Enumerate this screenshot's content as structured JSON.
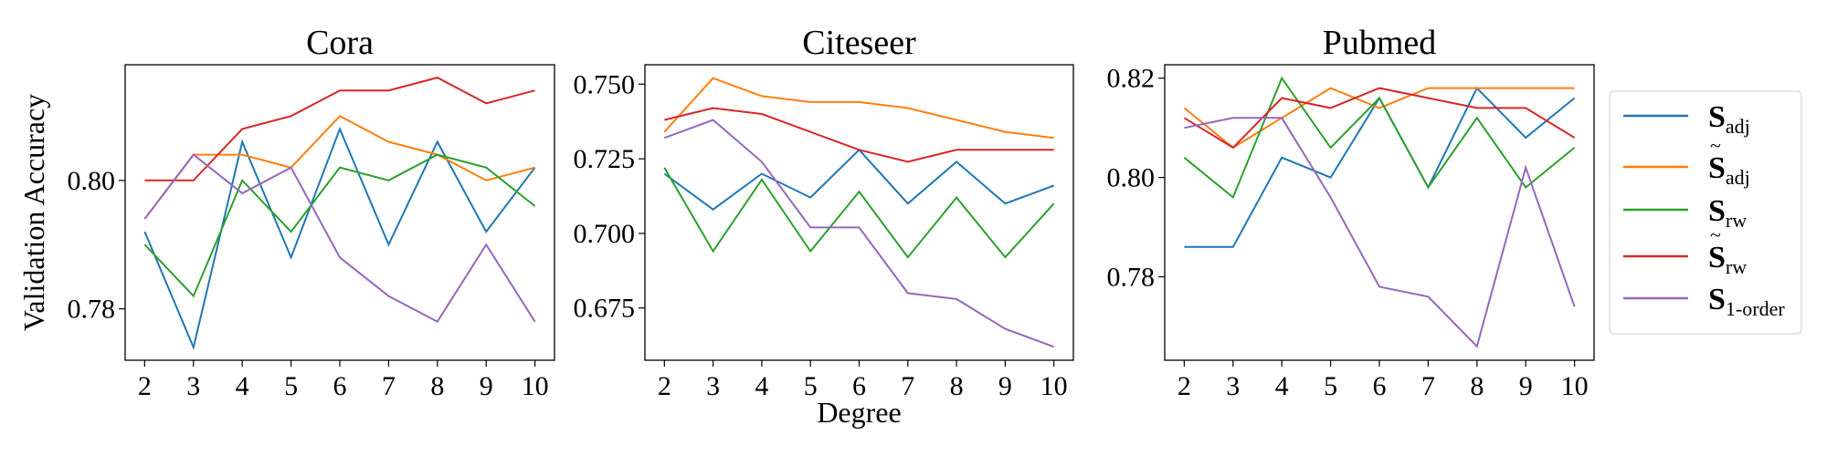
{
  "chart_data": [
    {
      "type": "line",
      "title": "Cora",
      "xlabel": "",
      "ylabel": "Validation Accuracy",
      "x": [
        2,
        3,
        4,
        5,
        6,
        7,
        8,
        9,
        10
      ],
      "ylim": [
        0.772,
        0.818
      ],
      "yticks": [
        0.78,
        0.8
      ],
      "ytick_labels": [
        "0.78",
        "0.80"
      ],
      "grid": false,
      "series": [
        {
          "key": "s_adj",
          "values": [
            0.792,
            0.774,
            0.806,
            0.788,
            0.808,
            0.79,
            0.806,
            0.792,
            0.802
          ]
        },
        {
          "key": "s_adj_tilde",
          "values": [
            0.794,
            0.804,
            0.804,
            0.802,
            0.81,
            0.806,
            0.804,
            0.8,
            0.802
          ]
        },
        {
          "key": "s_rw",
          "values": [
            0.79,
            0.782,
            0.8,
            0.792,
            0.802,
            0.8,
            0.804,
            0.802,
            0.796
          ]
        },
        {
          "key": "s_rw_tilde",
          "values": [
            0.8,
            0.8,
            0.808,
            0.81,
            0.814,
            0.814,
            0.816,
            0.812,
            0.814
          ]
        },
        {
          "key": "s_1order",
          "values": [
            0.794,
            0.804,
            0.798,
            0.802,
            0.788,
            0.782,
            0.778,
            0.79,
            0.778
          ]
        }
      ]
    },
    {
      "type": "line",
      "title": "Citeseer",
      "xlabel": "Degree",
      "ylabel": "",
      "x": [
        2,
        3,
        4,
        5,
        6,
        7,
        8,
        9,
        10
      ],
      "ylim": [
        0.6575,
        0.7565
      ],
      "yticks": [
        0.675,
        0.7,
        0.725,
        0.75
      ],
      "ytick_labels": [
        "0.675",
        "0.700",
        "0.725",
        "0.750"
      ],
      "grid": false,
      "series": [
        {
          "key": "s_adj",
          "values": [
            0.72,
            0.708,
            0.72,
            0.712,
            0.728,
            0.71,
            0.724,
            0.71,
            0.716
          ]
        },
        {
          "key": "s_adj_tilde",
          "values": [
            0.734,
            0.752,
            0.746,
            0.744,
            0.744,
            0.742,
            0.738,
            0.734,
            0.732
          ]
        },
        {
          "key": "s_rw",
          "values": [
            0.722,
            0.694,
            0.718,
            0.694,
            0.714,
            0.692,
            0.712,
            0.692,
            0.71
          ]
        },
        {
          "key": "s_rw_tilde",
          "values": [
            0.738,
            0.742,
            0.74,
            0.734,
            0.728,
            0.724,
            0.728,
            0.728,
            0.728
          ]
        },
        {
          "key": "s_1order",
          "values": [
            0.732,
            0.738,
            0.724,
            0.702,
            0.702,
            0.68,
            0.678,
            0.668,
            0.662
          ]
        }
      ]
    },
    {
      "type": "line",
      "title": "Pubmed",
      "xlabel": "",
      "ylabel": "",
      "x": [
        2,
        3,
        4,
        5,
        6,
        7,
        8,
        9,
        10
      ],
      "ylim": [
        0.7632,
        0.8227
      ],
      "yticks": [
        0.78,
        0.8,
        0.82
      ],
      "ytick_labels": [
        "0.78",
        "0.80",
        "0.82"
      ],
      "grid": false,
      "series": [
        {
          "key": "s_adj",
          "values": [
            0.786,
            0.786,
            0.804,
            0.8,
            0.816,
            0.798,
            0.818,
            0.808,
            0.816
          ]
        },
        {
          "key": "s_adj_tilde",
          "values": [
            0.814,
            0.806,
            0.812,
            0.818,
            0.814,
            0.818,
            0.818,
            0.818,
            0.818
          ]
        },
        {
          "key": "s_rw",
          "values": [
            0.804,
            0.796,
            0.82,
            0.806,
            0.816,
            0.798,
            0.812,
            0.798,
            0.806
          ]
        },
        {
          "key": "s_rw_tilde",
          "values": [
            0.812,
            0.806,
            0.816,
            0.814,
            0.818,
            0.816,
            0.814,
            0.814,
            0.808
          ]
        },
        {
          "key": "s_1order",
          "values": [
            0.81,
            0.812,
            0.812,
            0.796,
            0.778,
            0.776,
            0.766,
            0.802,
            0.774
          ]
        }
      ]
    }
  ],
  "legend": {
    "placement": "right",
    "entries": [
      {
        "key": "s_adj",
        "base": "S",
        "sub": "adj",
        "tilde": false,
        "color": "#1f77b4"
      },
      {
        "key": "s_adj_tilde",
        "base": "S",
        "sub": "adj",
        "tilde": true,
        "color": "#ff7f0e"
      },
      {
        "key": "s_rw",
        "base": "S",
        "sub": "rw",
        "tilde": false,
        "color": "#2ca02c"
      },
      {
        "key": "s_rw_tilde",
        "base": "S",
        "sub": "rw",
        "tilde": true,
        "color": "#d62728"
      },
      {
        "key": "s_1order",
        "base": "S",
        "sub": "1-order",
        "tilde": false,
        "color": "#9467bd"
      }
    ]
  }
}
